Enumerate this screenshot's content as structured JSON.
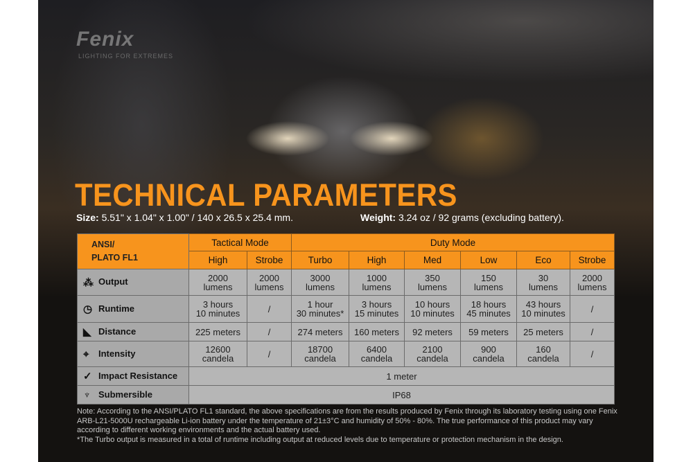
{
  "brand": {
    "logo": "Fenix",
    "tagline": "LIGHTING FOR EXTREMES"
  },
  "title": "TECHNICAL PARAMETERS",
  "size": {
    "label": "Size:",
    "value": "5.51\" x 1.04\" x 1.00\" / 140 x 26.5 x 25.4 mm."
  },
  "weight": {
    "label": "Weight:",
    "value": "3.24 oz / 92 grams (excluding battery)."
  },
  "table": {
    "corner": [
      "ANSI/",
      "PLATO  FL1"
    ],
    "groups": [
      "Tactical Mode",
      "Duty Mode"
    ],
    "modes": [
      "High",
      "Strobe",
      "Turbo",
      "High",
      "Med",
      "Low",
      "Eco",
      "Strobe"
    ],
    "rows": [
      {
        "label": "Output",
        "icon": "light-burst-icon",
        "cells": [
          [
            "2000",
            "lumens"
          ],
          [
            "2000",
            "lumens"
          ],
          [
            "3000",
            "lumens"
          ],
          [
            "1000",
            "lumens"
          ],
          [
            "350",
            "lumens"
          ],
          [
            "150",
            "lumens"
          ],
          [
            "30",
            "lumens"
          ],
          [
            "2000",
            "lumens"
          ]
        ]
      },
      {
        "label": "Runtime",
        "icon": "clock-icon",
        "cells": [
          [
            "3 hours",
            "10 minutes"
          ],
          [
            "/"
          ],
          [
            "1 hour",
            "30 minutes*"
          ],
          [
            "3 hours",
            "15 minutes"
          ],
          [
            "10 hours",
            "10 minutes"
          ],
          [
            "18 hours",
            "45 minutes"
          ],
          [
            "43 hours",
            "10 minutes"
          ],
          [
            "/"
          ]
        ]
      },
      {
        "label": "Distance",
        "icon": "beam-distance-icon",
        "cells": [
          [
            "225 meters"
          ],
          [
            "/"
          ],
          [
            "274 meters"
          ],
          [
            "160 meters"
          ],
          [
            "92 meters"
          ],
          [
            "59 meters"
          ],
          [
            "25 meters"
          ],
          [
            "/"
          ]
        ]
      },
      {
        "label": "Intensity",
        "icon": "target-icon",
        "cells": [
          [
            "12600",
            "candela"
          ],
          [
            "/"
          ],
          [
            "18700",
            "candela"
          ],
          [
            "6400",
            "candela"
          ],
          [
            "2100",
            "candela"
          ],
          [
            "900",
            "candela"
          ],
          [
            "160",
            "candela"
          ],
          [
            "/"
          ]
        ]
      }
    ],
    "impact": {
      "label": "Impact Resistance",
      "icon": "impact-icon",
      "value": "1 meter"
    },
    "submersible": {
      "label": "Submersible",
      "icon": "water-icon",
      "value": "IP68"
    }
  },
  "notes": [
    "Note: According to the ANSI/PLATO FL1 standard, the above specifications are from the results produced by Fenix through its laboratory testing using one Fenix ARB-L21-5000U rechargeable Li-ion battery under the temperature of 21±3°C and humidity of 50% - 80%. The true performance of this product may vary according to different working environments and the actual battery used.",
    "*The Turbo output is measured in a total of runtime including output at reduced levels due to temperature or protection mechanism in the design."
  ],
  "colors": {
    "accent": "#f7941d",
    "cell": "#b6b6b6",
    "label": "#a9a9a9",
    "background": "#141210"
  }
}
